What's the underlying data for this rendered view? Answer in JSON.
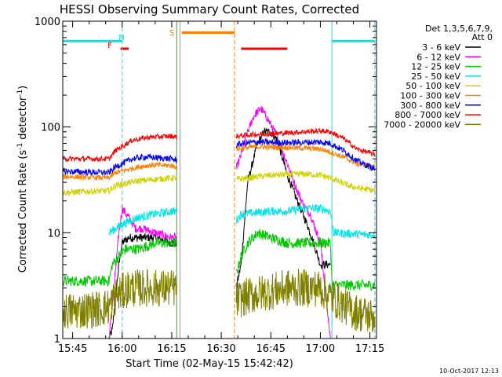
{
  "chart_data": {
    "type": "line",
    "title": "HESSI Observing Summary Count Rates, Corrected",
    "xlabel": "Start Time (02-May-15 15:42:42)",
    "ylabel_main": "Corrected Count Rate (s",
    "ylabel_sup1": "-1",
    "ylabel_mid": " detector",
    "ylabel_sup2": "-1",
    "ylabel_end": ")",
    "y_scale": "log",
    "ylim": [
      1,
      1000
    ],
    "xlim_minutes": [
      -3,
      92
    ],
    "x_ticks": [
      {
        "m": 0,
        "label": "15:45"
      },
      {
        "m": 15,
        "label": "16:00"
      },
      {
        "m": 30,
        "label": "16:15"
      },
      {
        "m": 45,
        "label": "16:30"
      },
      {
        "m": 60,
        "label": "16:45"
      },
      {
        "m": 75,
        "label": "17:00"
      },
      {
        "m": 90,
        "label": "17:15"
      }
    ],
    "y_ticks": [
      {
        "v": 1,
        "label": "1"
      },
      {
        "v": 10,
        "label": "10"
      },
      {
        "v": 100,
        "label": "100"
      },
      {
        "v": 1000,
        "label": "1000"
      }
    ],
    "legend_placement": "right",
    "legend_header": [
      "Det 1,3,5,6,7,9,",
      "Att 0"
    ],
    "footer_timestamp": "10-Oct-2017 12:13",
    "flags": [
      {
        "label": "F",
        "color": "#ff0000"
      },
      {
        "label": "N",
        "color": "#00e5e5"
      },
      {
        "label": "S",
        "color": "#ff8000"
      }
    ],
    "intervals": [
      {
        "kind": "night",
        "start": -3,
        "end": 15,
        "level": 650,
        "color": "#00e5e5"
      },
      {
        "kind": "night",
        "start": 78.5,
        "end": 91.5,
        "level": 650,
        "color": "#00e5e5"
      },
      {
        "kind": "flare",
        "start": 14.5,
        "end": 17,
        "level": 550,
        "color": "#ff0000"
      },
      {
        "kind": "saa",
        "start": 33,
        "end": 49,
        "level": 780,
        "color": "#ff8000"
      },
      {
        "kind": "flare",
        "start": 51,
        "end": 65,
        "level": 550,
        "color": "#ff0000"
      }
    ],
    "vertical_markers": [
      {
        "m": 15,
        "color": "#00e5e5",
        "dashed": true
      },
      {
        "m": 31.5,
        "color": "#00c800",
        "dashed": false
      },
      {
        "m": 32.5,
        "color": "#ff8000",
        "dashed": false
      },
      {
        "m": 49,
        "color": "#ff8000",
        "dashed": true
      },
      {
        "m": 78.5,
        "color": "#00e5e5",
        "dashed": false
      },
      {
        "m": 91.5,
        "color": "#00e5e5",
        "dashed": true
      }
    ],
    "series": [
      {
        "name": "3 - 6 keV",
        "color": "#000000",
        "noise": 0.04,
        "points": [
          [
            11,
            1
          ],
          [
            12,
            1.2
          ],
          [
            13,
            2.5
          ],
          [
            14,
            5
          ],
          [
            15,
            8
          ],
          [
            17,
            9
          ],
          [
            20,
            9
          ],
          [
            25,
            9
          ],
          [
            30,
            8
          ],
          [
            31.5,
            8
          ],
          [
            null,
            null
          ],
          [
            49.5,
            3
          ],
          [
            51,
            5
          ],
          [
            53,
            30
          ],
          [
            56,
            70
          ],
          [
            58,
            90
          ],
          [
            60,
            90
          ],
          [
            62,
            75
          ],
          [
            65,
            35
          ],
          [
            68,
            20
          ],
          [
            71,
            12
          ],
          [
            73,
            8
          ],
          [
            75,
            5
          ],
          [
            78,
            5
          ]
        ]
      },
      {
        "name": "6 - 12 keV",
        "color": "#ff00ff",
        "noise": 0.04,
        "points": [
          [
            11,
            1
          ],
          [
            12.5,
            3
          ],
          [
            14,
            10
          ],
          [
            15,
            17
          ],
          [
            17,
            14
          ],
          [
            19,
            11
          ],
          [
            21,
            11
          ],
          [
            25,
            10
          ],
          [
            30,
            9
          ],
          [
            31.5,
            9
          ],
          [
            null,
            null
          ],
          [
            49.5,
            40
          ],
          [
            51,
            55
          ],
          [
            53,
            90
          ],
          [
            55,
            130
          ],
          [
            57,
            150
          ],
          [
            59,
            120
          ],
          [
            62,
            80
          ],
          [
            65,
            45
          ],
          [
            68,
            25
          ],
          [
            70,
            18
          ],
          [
            72,
            15
          ],
          [
            73,
            12
          ],
          [
            75,
            8
          ],
          [
            76,
            4
          ],
          [
            77,
            2
          ],
          [
            78,
            1
          ]
        ]
      },
      {
        "name": "12 - 25 keV",
        "color": "#00c800",
        "noise": 0.05,
        "points": [
          [
            -3,
            3.5
          ],
          [
            11,
            3.5
          ],
          [
            12,
            5
          ],
          [
            14,
            6
          ],
          [
            16,
            7
          ],
          [
            20,
            7
          ],
          [
            25,
            8
          ],
          [
            30,
            8
          ],
          [
            31.5,
            8
          ],
          [
            null,
            null
          ],
          [
            49.5,
            4
          ],
          [
            51,
            6
          ],
          [
            53,
            8
          ],
          [
            56,
            10
          ],
          [
            60,
            9
          ],
          [
            65,
            8
          ],
          [
            70,
            8
          ],
          [
            75,
            8
          ],
          [
            78,
            8
          ],
          [
            78.6,
            3.2
          ],
          [
            91.5,
            3.2
          ]
        ]
      },
      {
        "name": "25 - 50 keV",
        "color": "#00e5e5",
        "noise": 0.04,
        "points": [
          [
            11,
            10
          ],
          [
            13,
            11
          ],
          [
            15,
            12
          ],
          [
            20,
            14
          ],
          [
            25,
            15
          ],
          [
            30,
            16
          ],
          [
            31.5,
            16
          ],
          [
            null,
            null
          ],
          [
            49.5,
            13
          ],
          [
            51,
            15
          ],
          [
            60,
            16
          ],
          [
            65,
            16
          ],
          [
            70,
            17
          ],
          [
            75,
            17
          ],
          [
            78,
            16
          ],
          [
            79,
            10
          ],
          [
            91.5,
            9.5
          ]
        ]
      },
      {
        "name": "50 - 100 keV",
        "color": "#d2d200",
        "noise": 0.03,
        "points": [
          [
            -3,
            24
          ],
          [
            11,
            25
          ],
          [
            13,
            28
          ],
          [
            20,
            31
          ],
          [
            25,
            32
          ],
          [
            30,
            33
          ],
          [
            31.5,
            33
          ],
          [
            null,
            null
          ],
          [
            49.5,
            32
          ],
          [
            60,
            35
          ],
          [
            70,
            36
          ],
          [
            75,
            35
          ],
          [
            78,
            33
          ],
          [
            81,
            30
          ],
          [
            85,
            27
          ],
          [
            91.5,
            25
          ]
        ]
      },
      {
        "name": "100 - 300 keV",
        "color": "#ff8000",
        "noise": 0.025,
        "points": [
          [
            -3,
            34
          ],
          [
            11,
            33
          ],
          [
            13,
            37
          ],
          [
            20,
            42
          ],
          [
            25,
            44
          ],
          [
            30,
            43
          ],
          [
            31.5,
            42
          ],
          [
            null,
            null
          ],
          [
            49.5,
            62
          ],
          [
            55,
            65
          ],
          [
            65,
            64
          ],
          [
            75,
            62
          ],
          [
            78,
            58
          ],
          [
            82,
            52
          ],
          [
            86,
            45
          ],
          [
            91.5,
            42
          ]
        ]
      },
      {
        "name": "300 - 800 keV",
        "color": "#0000ff",
        "noise": 0.03,
        "points": [
          [
            -3,
            38
          ],
          [
            11,
            37
          ],
          [
            13,
            42
          ],
          [
            18,
            50
          ],
          [
            22,
            52
          ],
          [
            30,
            50
          ],
          [
            31.5,
            48
          ],
          [
            null,
            null
          ],
          [
            49.5,
            68
          ],
          [
            55,
            72
          ],
          [
            65,
            71
          ],
          [
            75,
            72
          ],
          [
            78,
            70
          ],
          [
            82,
            60
          ],
          [
            86,
            48
          ],
          [
            91.5,
            40
          ]
        ]
      },
      {
        "name": "800 - 7000 keV",
        "color": "#ff0000",
        "noise": 0.025,
        "points": [
          [
            -3,
            50
          ],
          [
            11,
            50
          ],
          [
            13,
            60
          ],
          [
            18,
            75
          ],
          [
            23,
            80
          ],
          [
            30,
            82
          ],
          [
            31.5,
            80
          ],
          [
            null,
            null
          ],
          [
            49.5,
            82
          ],
          [
            55,
            85
          ],
          [
            65,
            88
          ],
          [
            70,
            90
          ],
          [
            75,
            92
          ],
          [
            78,
            90
          ],
          [
            82,
            78
          ],
          [
            86,
            62
          ],
          [
            91.5,
            55
          ]
        ]
      },
      {
        "name": "7000 - 20000 keV",
        "color": "#808000",
        "noise": 0.18,
        "points": [
          [
            -3,
            1.8
          ],
          [
            8,
            1.9
          ],
          [
            11,
            2
          ],
          [
            13,
            2.5
          ],
          [
            17,
            3
          ],
          [
            31.5,
            3
          ],
          [
            null,
            null
          ],
          [
            49.5,
            2.3
          ],
          [
            55,
            2.6
          ],
          [
            65,
            3
          ],
          [
            75,
            3
          ],
          [
            78,
            2.5
          ],
          [
            85,
            1.8
          ],
          [
            91.5,
            1.6
          ]
        ]
      }
    ]
  }
}
